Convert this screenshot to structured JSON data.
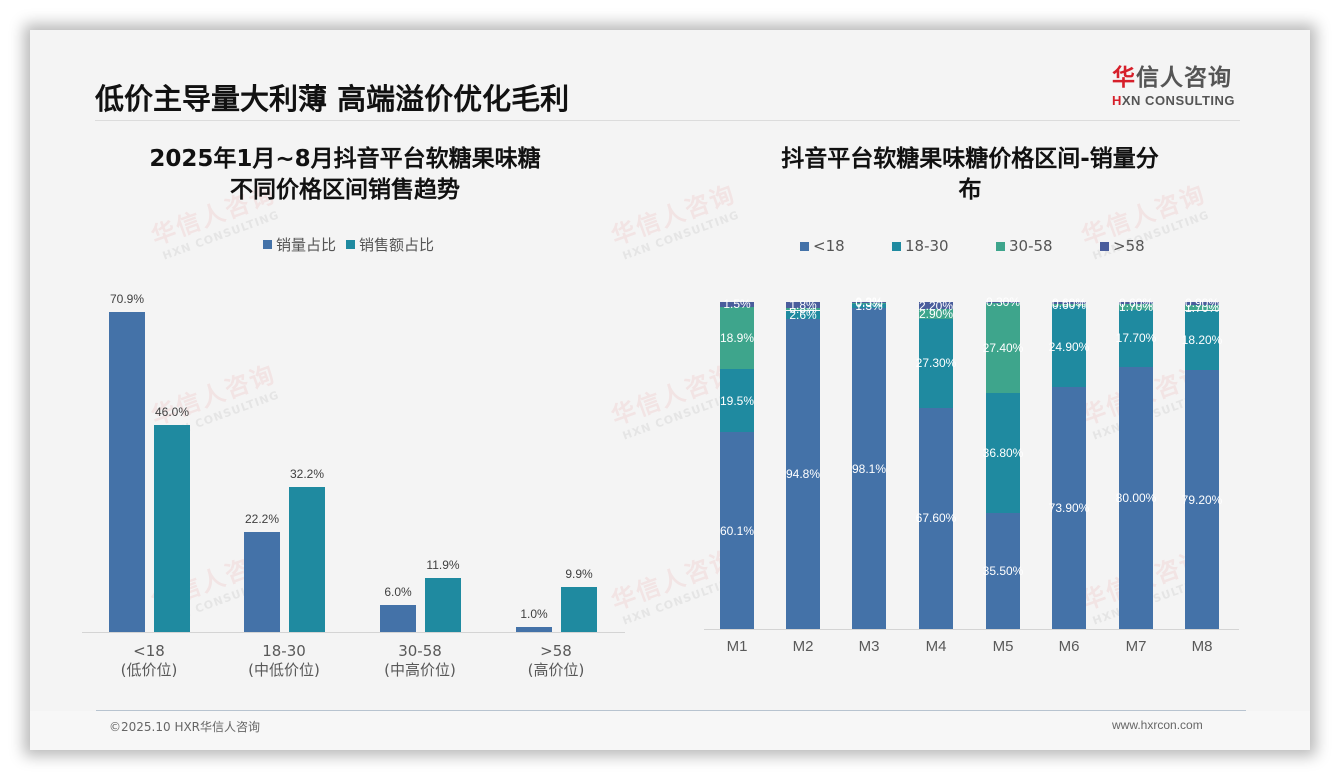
{
  "header": {
    "title": "低价主导量大利薄 高端溢价优化毛利",
    "logo_cn_red": "华",
    "logo_cn_rest": "信人咨询",
    "logo_en_red": "H",
    "logo_en_rest": "XN CONSULTING"
  },
  "watermark": {
    "cn": "华信人咨询",
    "en": "HXN CONSULTING"
  },
  "colors": {
    "lt18": "#4472a8",
    "18_30": "#1f8aa0",
    "30_58": "#3ea58c",
    "gt58": "#4a5d9c",
    "sales_volume": "#4472a8",
    "sales_amount": "#1f8aa0"
  },
  "chart_data": [
    {
      "type": "bar",
      "title": "2025年1月~8月抖音平台软糖果味糖 不同价格区间销售趋势",
      "title_line1": "2025年1月~8月抖音平台软糖果味糖",
      "title_line2": "不同价格区间销售趋势",
      "categories": [
        "<18",
        "18-30",
        "30-58",
        ">58"
      ],
      "category_sublabels": [
        "(低价位)",
        "(中低价位)",
        "(中高价位)",
        "(高价位)"
      ],
      "series": [
        {
          "name": "销量占比",
          "values": [
            70.9,
            22.2,
            6.0,
            1.0
          ],
          "labels": [
            "70.9%",
            "22.2%",
            "6.0%",
            "1.0%"
          ]
        },
        {
          "name": "销售额占比",
          "values": [
            46.0,
            32.2,
            11.9,
            9.9
          ],
          "labels": [
            "46.0%",
            "32.2%",
            "11.9%",
            "9.9%"
          ]
        }
      ],
      "legend_position": "top",
      "grid": false,
      "xlabel": "",
      "ylabel": ""
    },
    {
      "type": "bar",
      "stacked": true,
      "title": "抖音平台软糖果味糖价格区间-销量分布",
      "title_line1": "抖音平台软糖果味糖价格区间-销量分",
      "title_line2": "布",
      "categories": [
        "M1",
        "M2",
        "M3",
        "M4",
        "M5",
        "M6",
        "M7",
        "M8"
      ],
      "series": [
        {
          "name": "<18",
          "values": [
            60.1,
            94.8,
            98.1,
            67.6,
            35.5,
            73.9,
            80.0,
            79.2
          ],
          "labels": [
            "60.1%",
            "94.8%",
            "98.1%",
            "67.60%",
            "35.50%",
            "73.90%",
            "80.00%",
            "79.20%"
          ]
        },
        {
          "name": "18-30",
          "values": [
            19.5,
            2.6,
            1.3,
            27.3,
            36.8,
            24.9,
            17.7,
            18.2
          ],
          "labels": [
            "19.5%",
            "2.6%",
            "1.3%",
            "27.30%",
            "36.80%",
            "24.90%",
            "17.70%",
            "18.20%"
          ]
        },
        {
          "name": "30-58",
          "values": [
            18.9,
            0.8,
            0.3,
            2.9,
            27.4,
            0.6,
            1.7,
            1.7
          ],
          "labels": [
            "18.9%",
            "0.8%",
            "0.3%",
            "2.90%",
            "27.40%",
            "0.60%",
            "1.70%",
            "1.70%"
          ]
        },
        {
          "name": ">58",
          "values": [
            1.5,
            1.8,
            0.3,
            2.2,
            0.3,
            0.6,
            0.6,
            0.9
          ],
          "labels": [
            "1.5%",
            "1.8%",
            "0.3%",
            "2.20%",
            "0.30%",
            "0.60%",
            "0.60%",
            "0.90%"
          ]
        }
      ],
      "ylim": [
        0,
        100
      ],
      "legend_position": "top",
      "grid": false,
      "xlabel": "",
      "ylabel": ""
    }
  ],
  "footer": {
    "copyright": "©2025.10 HXR华信人咨询",
    "website": "www.hxrcon.com"
  }
}
